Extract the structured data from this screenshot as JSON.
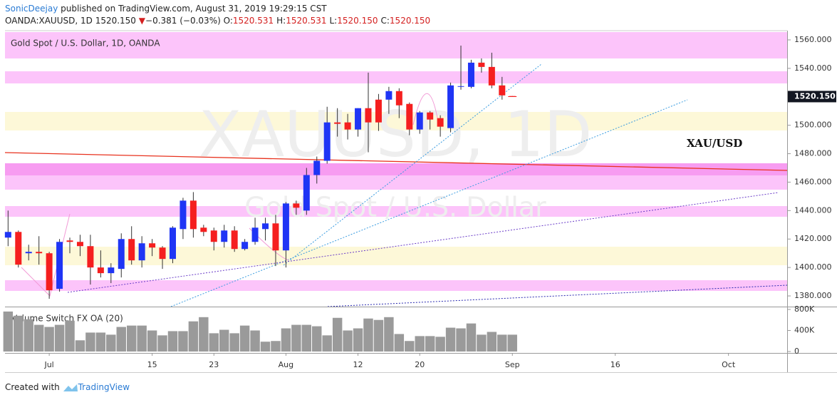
{
  "header": {
    "author": "SonicDeejay",
    "published": "published on TradingView.com, August 31, 2019 19:29:15 CST",
    "symbol": "OANDA:XAUUSD, 1D",
    "price": "1520.150",
    "arrow": "▼",
    "change": "−0.381 (−0.03%)",
    "ohlc": [
      {
        "label": "O:",
        "value": "1520.531"
      },
      {
        "label": "H:",
        "value": "1520.531"
      },
      {
        "label": "L:",
        "value": "1520.150"
      },
      {
        "label": "C:",
        "value": "1520.150"
      }
    ]
  },
  "footer": {
    "prefix": "Created with",
    "brand": "TradingView"
  },
  "chart_data": {
    "type": "candlestick",
    "title": "Gold Spot / U.S. Dollar, 1D, OANDA",
    "watermark": "XAUUSD, 1D",
    "watermark_sub": "Gold Spot / U.S. Dollar",
    "annotation": "XAU/USD",
    "up_color": "#1f35f5",
    "down_color": "#f51f1f",
    "open": [
      1421,
      1425,
      1410,
      1411,
      1410,
      1385,
      1419,
      1418,
      1415,
      1400,
      1396,
      1399,
      1420,
      1405,
      1417,
      1414,
      1406,
      1427,
      1447,
      1428,
      1426,
      1418,
      1426,
      1413,
      1418,
      1427,
      1431,
      1412,
      1445,
      1440,
      1465,
      1475,
      1502,
      1502,
      1497,
      1512,
      1518,
      1518,
      1524,
      1515,
      1497,
      1509,
      1505,
      1498,
      1527,
      1527,
      1544,
      1541,
      1528,
      1520.531
    ],
    "high": [
      1440,
      1426,
      1416,
      1422,
      1411,
      1420,
      1421,
      1423,
      1423,
      1412,
      1403,
      1424,
      1429,
      1422,
      1420,
      1415,
      1429,
      1449,
      1453,
      1430,
      1428,
      1430,
      1429,
      1420,
      1435,
      1435,
      1437,
      1446,
      1447,
      1470,
      1478,
      1513,
      1512,
      1508,
      1512,
      1537,
      1522,
      1527,
      1526,
      1516,
      1510,
      1510,
      1507,
      1530,
      1556,
      1546,
      1547,
      1551,
      1534,
      1520.531
    ],
    "low": [
      1415,
      1400,
      1405,
      1402,
      1378,
      1383,
      1410,
      1408,
      1388,
      1393,
      1389,
      1393,
      1402,
      1400,
      1408,
      1399,
      1403,
      1420,
      1421,
      1422,
      1412,
      1414,
      1411,
      1412,
      1416,
      1419,
      1401,
      1400,
      1437,
      1437,
      1459,
      1473,
      1492,
      1490,
      1492,
      1481,
      1496,
      1508,
      1505,
      1493,
      1494,
      1497,
      1492,
      1495,
      1525,
      1526,
      1537,
      1526,
      1518,
      1520.15
    ],
    "close": [
      1425,
      1402,
      1411,
      1410,
      1384,
      1418,
      1418,
      1415,
      1400,
      1396,
      1400,
      1420,
      1405,
      1417,
      1414,
      1406,
      1428,
      1447,
      1427,
      1425,
      1418,
      1426,
      1413,
      1418,
      1428,
      1431,
      1412,
      1445,
      1442,
      1465,
      1475,
      1502,
      1501,
      1497,
      1512,
      1502,
      1502,
      1524,
      1514,
      1497,
      1509,
      1504,
      1499,
      1528,
      1527.5,
      1544,
      1541,
      1528,
      1521,
      1520.15
    ],
    "xlim": [
      -0.3,
      75.7
    ],
    "xticks": [
      {
        "value": 4,
        "label": "Jul"
      },
      {
        "value": 14,
        "label": "15"
      },
      {
        "value": 20,
        "label": "23"
      },
      {
        "value": 27,
        "label": "Aug"
      },
      {
        "value": 34,
        "label": "12"
      },
      {
        "value": 40,
        "label": "20"
      },
      {
        "value": 49,
        "label": "Sep"
      },
      {
        "value": 59,
        "label": "16"
      },
      {
        "value": 70,
        "label": "Oct"
      }
    ],
    "ylim": [
      1372.5,
      1566.5
    ],
    "yticks": [
      {
        "value": 1380,
        "label": "1380.000"
      },
      {
        "value": 1400,
        "label": "1400.000"
      },
      {
        "value": 1420,
        "label": "1420.000"
      },
      {
        "value": 1440,
        "label": "1440.000"
      },
      {
        "value": 1460,
        "label": "1460.000"
      },
      {
        "value": 1480,
        "label": "1480.000"
      },
      {
        "value": 1500,
        "label": "1500.000"
      },
      {
        "value": 1520,
        "label": "1520.000"
      },
      {
        "value": 1540,
        "label": "1540.000"
      },
      {
        "value": 1560,
        "label": "1560.000"
      }
    ],
    "last_price": {
      "value": 1520.15,
      "label": "1520.150"
    },
    "grid": false,
    "volume": {
      "title": "Volume Switch FX OA (20)",
      "color": "#9a9a9a",
      "values": [
        760000,
        680000,
        613000,
        507000,
        467000,
        507000,
        587000,
        213000,
        360000,
        360000,
        320000,
        467000,
        493000,
        493000,
        400000,
        307000,
        387000,
        387000,
        573000,
        653000,
        347000,
        413000,
        347000,
        493000,
        400000,
        187000,
        200000,
        440000,
        507000,
        507000,
        480000,
        307000,
        640000,
        400000,
        440000,
        627000,
        600000,
        653000,
        333000,
        200000,
        293000,
        293000,
        280000,
        453000,
        440000,
        533000,
        320000,
        373000,
        320000,
        320000
      ],
      "ylim": [
        -27000,
        840000
      ],
      "yticks": [
        0,
        {
          "value": 400000,
          "label": "400K"
        },
        {
          "value": 800000,
          "label": "800K"
        }
      ]
    }
  }
}
